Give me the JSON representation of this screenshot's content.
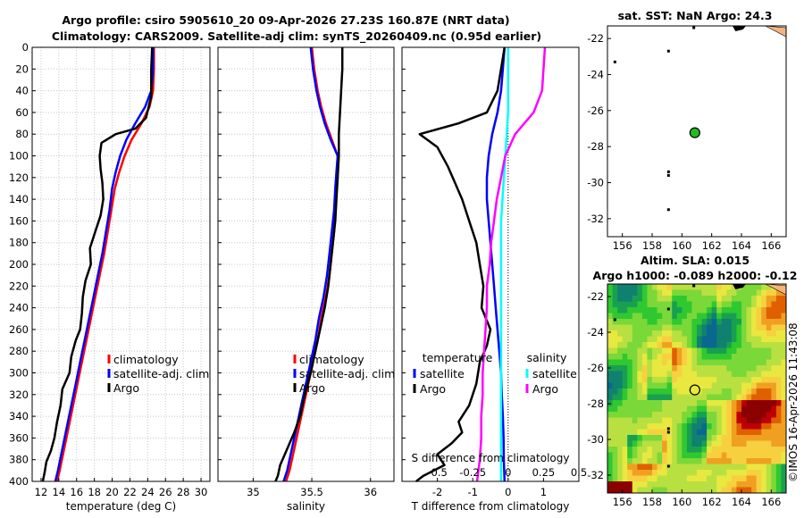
{
  "header": {
    "title_line1": "Argo profile: csiro 5905610_20 09-Apr-2026 27.23S 160.87E (NRT data)",
    "title_line2": "Climatology: CARS2009. Satellite-adj clim: synTS_20260409.nc (0.95d earlier)"
  },
  "footer": {
    "credit": "©IMOS 16-Apr-2026 11:43:08"
  },
  "colors": {
    "climatology": "#ff0000",
    "satellite": "#0000ff",
    "argo": "#000000",
    "sat_salinity": "#00ffff",
    "argo_salinity": "#ff00ff"
  },
  "chart_data": [
    {
      "id": "temperature",
      "type": "line",
      "title": "",
      "xlabel": "temperature (deg C)",
      "ylabel": "",
      "xlim": [
        11,
        31
      ],
      "ylim": [
        400,
        0
      ],
      "xticks": [
        12,
        14,
        16,
        18,
        20,
        22,
        24,
        26,
        28,
        30
      ],
      "yticks": [
        0,
        20,
        40,
        60,
        80,
        100,
        120,
        140,
        160,
        180,
        200,
        220,
        240,
        260,
        280,
        300,
        320,
        340,
        360,
        380,
        400
      ],
      "grid": true,
      "legend": {
        "position": "right-middle",
        "entries": [
          "climatology",
          "satellite-adj. clim",
          "Argo"
        ]
      },
      "series": [
        {
          "name": "climatology",
          "color": "#ff0000",
          "x": [
            24.7,
            24.7,
            24.6,
            24.2,
            23.3,
            22.2,
            21.4,
            20.8,
            20.3,
            19.9,
            19.5,
            19.1,
            18.6,
            18.1,
            17.6,
            17.1,
            16.6,
            16.1,
            15.6,
            15.1,
            14.6,
            14.1,
            13.8
          ],
          "y": [
            0,
            20,
            40,
            55,
            70,
            85,
            100,
            115,
            130,
            150,
            170,
            190,
            210,
            230,
            250,
            270,
            290,
            310,
            330,
            350,
            370,
            390,
            400
          ]
        },
        {
          "name": "satellite-adj. clim",
          "color": "#0000ff",
          "x": [
            24.6,
            24.6,
            24.4,
            23.7,
            22.6,
            21.6,
            20.9,
            20.4,
            20.0,
            19.7,
            19.3,
            18.9,
            18.4,
            17.9,
            17.4,
            16.9,
            16.4,
            15.9,
            15.4,
            14.9,
            14.4,
            13.9,
            13.6
          ],
          "y": [
            0,
            20,
            40,
            55,
            70,
            85,
            100,
            115,
            130,
            150,
            170,
            190,
            210,
            230,
            250,
            270,
            290,
            310,
            330,
            350,
            370,
            390,
            400
          ]
        },
        {
          "name": "Argo",
          "color": "#000000",
          "x": [
            24.5,
            24.4,
            24.4,
            23.8,
            22.6,
            20.4,
            18.8,
            18.6,
            18.7,
            18.9,
            19.0,
            18.7,
            18.1,
            17.5,
            17.6,
            17.0,
            16.7,
            16.6,
            16.4,
            15.9,
            15.4,
            15.2,
            14.4,
            14.2,
            13.8,
            13.5,
            13.1,
            12.6,
            12.4,
            12.2
          ],
          "y": [
            0,
            20,
            45,
            65,
            75,
            80,
            88,
            100,
            112,
            125,
            140,
            155,
            170,
            185,
            200,
            215,
            230,
            245,
            260,
            270,
            285,
            300,
            315,
            330,
            345,
            360,
            372,
            382,
            392,
            400
          ]
        }
      ]
    },
    {
      "id": "salinity",
      "type": "line",
      "title": "",
      "xlabel": "salinity",
      "ylabel": "",
      "xlim": [
        34.7,
        36.2
      ],
      "ylim": [
        400,
        0
      ],
      "xticks": [
        35,
        35.5,
        36
      ],
      "yticks": [
        0,
        20,
        40,
        60,
        80,
        100,
        120,
        140,
        160,
        180,
        200,
        220,
        240,
        260,
        280,
        300,
        320,
        340,
        360,
        380,
        400
      ],
      "grid": true,
      "legend": {
        "position": "right-middle",
        "entries": [
          "climatology",
          "satellite-adj. clim",
          "Argo"
        ]
      },
      "series": [
        {
          "name": "climatology",
          "color": "#ff0000",
          "x": [
            35.5,
            35.52,
            35.55,
            35.58,
            35.62,
            35.67,
            35.72,
            35.72,
            35.71,
            35.7,
            35.69,
            35.67,
            35.65,
            35.62,
            35.58,
            35.55,
            35.51,
            35.47,
            35.43,
            35.39,
            35.35,
            35.31,
            35.28
          ],
          "y": [
            0,
            20,
            40,
            55,
            70,
            85,
            100,
            115,
            130,
            150,
            170,
            190,
            210,
            230,
            250,
            270,
            290,
            310,
            330,
            350,
            370,
            390,
            400
          ]
        },
        {
          "name": "satellite-adj. clim",
          "color": "#0000ff",
          "x": [
            35.49,
            35.51,
            35.54,
            35.57,
            35.61,
            35.66,
            35.72,
            35.71,
            35.7,
            35.69,
            35.67,
            35.65,
            35.63,
            35.6,
            35.56,
            35.53,
            35.49,
            35.45,
            35.41,
            35.37,
            35.33,
            35.29,
            35.26
          ],
          "y": [
            0,
            20,
            40,
            55,
            70,
            85,
            100,
            115,
            130,
            150,
            170,
            190,
            210,
            230,
            250,
            270,
            290,
            310,
            330,
            350,
            370,
            390,
            400
          ]
        },
        {
          "name": "Argo",
          "color": "#000000",
          "x": [
            35.76,
            35.76,
            35.75,
            35.74,
            35.73,
            35.73,
            35.72,
            35.71,
            35.7,
            35.68,
            35.66,
            35.64,
            35.61,
            35.57,
            35.53,
            35.49,
            35.44,
            35.4,
            35.35,
            35.31,
            35.27,
            35.23,
            35.21,
            35.19
          ],
          "y": [
            0,
            20,
            40,
            60,
            80,
            100,
            120,
            140,
            160,
            180,
            200,
            220,
            240,
            260,
            280,
            300,
            320,
            340,
            355,
            365,
            375,
            385,
            395,
            400
          ]
        }
      ]
    },
    {
      "id": "differences",
      "type": "line",
      "title": "",
      "xlabel": "T difference from climatology",
      "xlabel_top": "S difference from climatology",
      "ylabel": "",
      "xlim": [
        -3,
        2
      ],
      "xlim_top": [
        -0.75,
        0.5
      ],
      "ylim": [
        400,
        0
      ],
      "xticks": [
        -2,
        -1,
        0,
        1
      ],
      "xticks_top": [
        "-0.5",
        "-0.25",
        "0",
        "0.25",
        "0.5"
      ],
      "yticks": [
        0,
        20,
        40,
        60,
        80,
        100,
        120,
        140,
        160,
        180,
        200,
        220,
        240,
        260,
        280,
        300,
        320,
        340,
        360,
        380,
        400
      ],
      "grid": false,
      "legend": {
        "position": "right-middle",
        "temperature_heading": "temperature",
        "salinity_heading": "salinity",
        "entries_t": [
          "satellite",
          "Argo"
        ],
        "entries_s": [
          "satellite",
          "Argo"
        ]
      },
      "series": [
        {
          "name": "T satellite",
          "color": "#0000ff",
          "x": [
            -0.1,
            -0.15,
            -0.2,
            -0.3,
            -0.45,
            -0.55,
            -0.6,
            -0.6,
            -0.55,
            -0.5,
            -0.45,
            -0.4,
            -0.35,
            -0.3,
            -0.25,
            -0.2,
            -0.18,
            -0.15,
            -0.13,
            -0.12,
            -0.1
          ],
          "y": [
            0,
            20,
            40,
            60,
            80,
            100,
            120,
            140,
            160,
            180,
            200,
            220,
            240,
            260,
            280,
            300,
            320,
            340,
            360,
            380,
            400
          ]
        },
        {
          "name": "T Argo",
          "color": "#000000",
          "x": [
            -0.1,
            -0.2,
            -0.3,
            -0.6,
            -1.4,
            -2.5,
            -2.0,
            -1.7,
            -1.5,
            -1.3,
            -1.1,
            -0.9,
            -0.8,
            -0.7,
            -0.75,
            -0.5,
            -0.6,
            -0.8,
            -0.9,
            -1.1,
            -1.4,
            -1.3,
            -1.6,
            -2.0,
            -1.8,
            -2.4,
            -2.6
          ],
          "y": [
            0,
            20,
            40,
            60,
            70,
            80,
            92,
            110,
            125,
            140,
            160,
            180,
            200,
            220,
            240,
            260,
            275,
            290,
            310,
            330,
            345,
            355,
            365,
            375,
            385,
            395,
            400
          ]
        },
        {
          "name": "S satellite",
          "color": "#00ffff",
          "x": [
            0.0,
            0.0,
            0.0,
            0.0,
            -0.01,
            -0.02,
            -0.03,
            -0.04,
            -0.05,
            -0.05,
            -0.05,
            -0.05,
            -0.05,
            -0.05,
            -0.05,
            -0.05,
            -0.05,
            -0.05,
            -0.05,
            -0.05,
            -0.05
          ],
          "y": [
            0,
            20,
            40,
            60,
            80,
            100,
            120,
            140,
            160,
            180,
            200,
            220,
            240,
            260,
            280,
            300,
            320,
            340,
            360,
            380,
            400
          ]
        },
        {
          "name": "S Argo",
          "color": "#ff00ff",
          "x": [
            0.26,
            0.25,
            0.24,
            0.18,
            0.05,
            -0.02,
            -0.05,
            -0.08,
            -0.1,
            -0.12,
            -0.13,
            -0.15,
            -0.15,
            -0.16,
            -0.17,
            -0.18,
            -0.18,
            -0.19,
            -0.19,
            -0.2,
            -0.22
          ],
          "y": [
            0,
            20,
            40,
            60,
            80,
            100,
            120,
            140,
            160,
            180,
            200,
            220,
            240,
            260,
            280,
            300,
            320,
            340,
            360,
            380,
            400
          ]
        }
      ]
    },
    {
      "id": "sst_map",
      "type": "heatmap",
      "title": "sat. SST: NaN Argo: 24.3",
      "xlim": [
        155,
        167
      ],
      "ylim": [
        -33,
        -21.3
      ],
      "xticks": [
        156,
        158,
        160,
        162,
        164,
        166
      ],
      "yticks": [
        -22,
        -24,
        -26,
        -28,
        -30,
        -32
      ],
      "argo_position": {
        "lon": 160.87,
        "lat": -27.23
      },
      "fill": "none"
    },
    {
      "id": "sla_map",
      "type": "heatmap",
      "title": "Altim. SLA: 0.015",
      "subtitle": "Argo h1000: -0.089 h2000: -0.12",
      "xlim": [
        155,
        167
      ],
      "ylim": [
        -33,
        -21.3
      ],
      "xticks": [
        156,
        158,
        160,
        162,
        164,
        166
      ],
      "yticks": [
        -22,
        -24,
        -26,
        -28,
        -30,
        -32
      ],
      "argo_position": {
        "lon": 160.87,
        "lat": -27.23
      },
      "value": 0.015
    }
  ]
}
